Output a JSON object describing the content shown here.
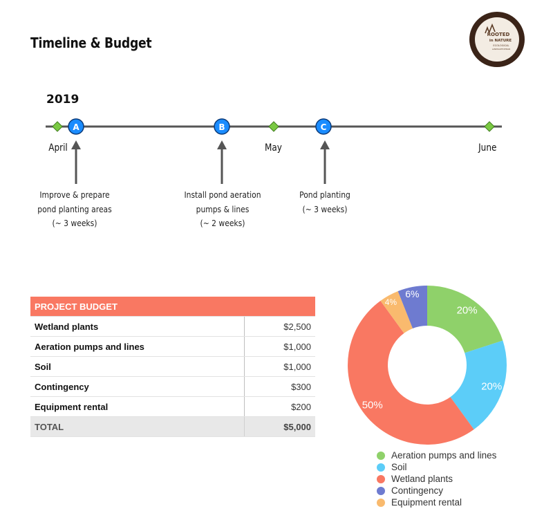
{
  "page": {
    "title": "Timeline & Budget",
    "logo_text": [
      "ROOTED",
      "in NATURE",
      "ECOLOGICAL",
      "LANDSCAPE DESIGN"
    ]
  },
  "timeline": {
    "year": "2019",
    "months": [
      "April",
      "May",
      "June"
    ],
    "milestones": [
      {
        "letter": "A",
        "lines": [
          "Improve & prepare",
          "pond planting areas",
          "(~ 3 weeks)"
        ]
      },
      {
        "letter": "B",
        "lines": [
          "Install pond aeration",
          "pumps & lines",
          "(~ 2 weeks)"
        ]
      },
      {
        "letter": "C",
        "lines": [
          "Pond planting",
          "(~ 3 weeks)"
        ]
      }
    ],
    "colors": {
      "line": "#555555",
      "milestone": "#1a8cff",
      "diamond": "#7ac943"
    }
  },
  "budget": {
    "header": "PROJECT BUDGET",
    "rows": [
      {
        "item": "Wetland plants",
        "cost": "$2,500"
      },
      {
        "item": "Aeration pumps and lines",
        "cost": "$1,000"
      },
      {
        "item": "Soil",
        "cost": "$1,000"
      },
      {
        "item": "Contingency",
        "cost": "$300"
      },
      {
        "item": "Equipment rental",
        "cost": "$200"
      }
    ],
    "total_label": "TOTAL",
    "total_cost": "$5,000",
    "header_color": "#f97862"
  },
  "chart_data": {
    "type": "pie",
    "donut": true,
    "legend_position": "bottom",
    "slices": [
      {
        "label": "Aeration pumps and lines",
        "value": 20,
        "display": "20%",
        "color": "#8fd16a"
      },
      {
        "label": "Soil",
        "value": 20,
        "display": "20%",
        "color": "#5ccdf8"
      },
      {
        "label": "Wetland plants",
        "value": 50,
        "display": "50%",
        "color": "#f97862"
      },
      {
        "label": "Equipment rental",
        "value": 4,
        "display": "4%",
        "color": "#f9ba6e"
      },
      {
        "label": "Contingency",
        "value": 6,
        "display": "6%",
        "color": "#6e7bd0"
      }
    ]
  }
}
